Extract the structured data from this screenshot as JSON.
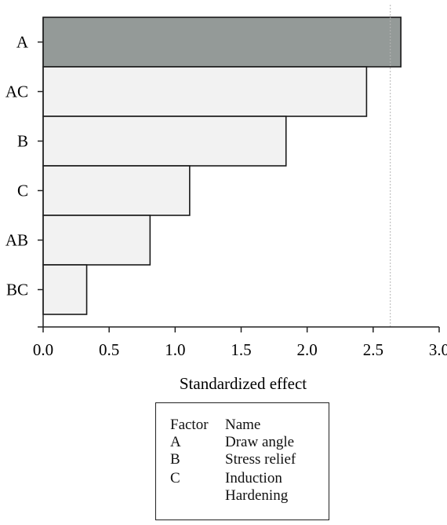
{
  "chart_data": {
    "type": "bar",
    "orientation": "horizontal",
    "categories": [
      "A",
      "AC",
      "B",
      "C",
      "AB",
      "BC"
    ],
    "values": [
      2.71,
      2.45,
      1.84,
      1.11,
      0.81,
      0.33
    ],
    "highlight_colors": [
      "#949a98",
      "#f2f2f2",
      "#f2f2f2",
      "#f2f2f2",
      "#f2f2f2",
      "#f2f2f2"
    ],
    "xlabel": "Standardized effect",
    "xlim": [
      0,
      3.0
    ],
    "xticks": [
      "0.0",
      "0.5",
      "1.0",
      "1.5",
      "2.0",
      "2.5",
      "3.0"
    ],
    "reference_line": 2.63,
    "grid": false
  },
  "legend": {
    "header": {
      "code": "Factor",
      "name": "Name"
    },
    "rows": [
      {
        "code": "A",
        "name": "Draw angle"
      },
      {
        "code": "B",
        "name": "Stress relief"
      },
      {
        "code": "C",
        "name": "Induction"
      },
      {
        "code": "",
        "name": "Hardening"
      }
    ]
  }
}
